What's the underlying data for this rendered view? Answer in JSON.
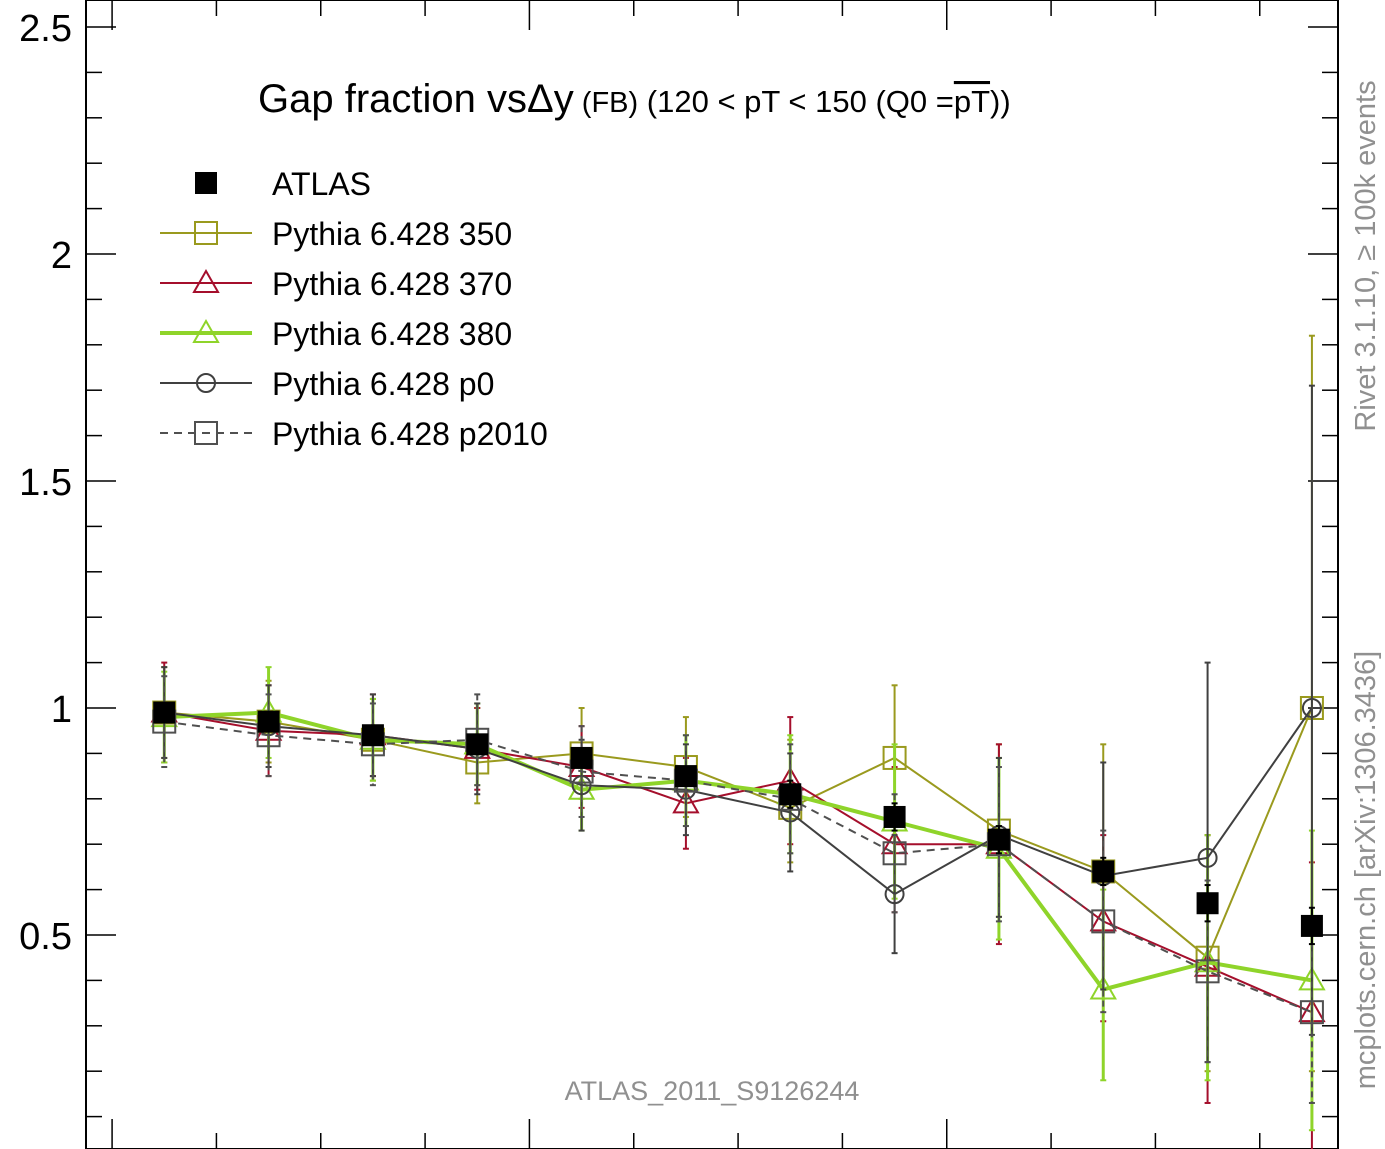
{
  "chart_data": {
    "type": "line",
    "title_main": "Gap fraction vs",
    "title_delta": "Δy",
    "title_fb": " (FB)",
    "title_pt_prefix": " (120 < pT < 150 (Q0 =",
    "title_pt_bar": "pT",
    "title_pt_suffix": "))",
    "watermark": "ATLAS_2011_S9126244",
    "side_label_top": "Rivet 3.1.10, ≥ 100k events",
    "side_label_bottom": "mcplots.cern.ch [arXiv:1306.3436]",
    "ylim": [
      0.1,
      2.5
    ],
    "xlim": [
      0,
      12
    ],
    "y_ticks": [
      {
        "value": 0.5,
        "label": "0.5"
      },
      {
        "value": 1,
        "label": "1"
      },
      {
        "value": 1.5,
        "label": "1.5"
      },
      {
        "value": 2,
        "label": "2"
      },
      {
        "value": 2.5,
        "label": "2.5"
      }
    ],
    "x": [
      0.75,
      1.75,
      2.75,
      3.75,
      4.75,
      5.75,
      6.75,
      7.75,
      8.75,
      9.75,
      10.75,
      11.75
    ],
    "series": [
      {
        "name": "ATLAS",
        "color": "#000000",
        "marker": "filled-square",
        "line": "none",
        "values": [
          0.99,
          0.97,
          0.94,
          0.92,
          0.89,
          0.85,
          0.81,
          0.76,
          0.71,
          0.64,
          0.57,
          0.52
        ],
        "err_hi": [
          0.02,
          0.02,
          0.02,
          0.02,
          0.02,
          0.02,
          0.03,
          0.03,
          0.03,
          0.03,
          0.04,
          0.04
        ],
        "err_lo": [
          0.02,
          0.02,
          0.02,
          0.02,
          0.02,
          0.02,
          0.03,
          0.03,
          0.03,
          0.03,
          0.04,
          0.04
        ]
      },
      {
        "name": "Pythia 6.428 350",
        "color": "#9a9a1e",
        "marker": "open-square",
        "line": "solid",
        "values": [
          0.99,
          0.97,
          0.93,
          0.88,
          0.9,
          0.87,
          0.78,
          0.89,
          0.73,
          0.64,
          0.45,
          1.0
        ],
        "err_hi": [
          0.1,
          0.09,
          0.09,
          0.12,
          0.1,
          0.11,
          0.15,
          0.16,
          0.19,
          0.28,
          0.27,
          0.82
        ],
        "err_lo": [
          0.1,
          0.09,
          0.09,
          0.09,
          0.1,
          0.11,
          0.12,
          0.16,
          0.19,
          0.28,
          0.25,
          0.8
        ]
      },
      {
        "name": "Pythia 6.428 370",
        "color": "#a50f2c",
        "marker": "open-triangle",
        "line": "solid",
        "values": [
          0.99,
          0.95,
          0.94,
          0.91,
          0.87,
          0.79,
          0.84,
          0.7,
          0.7,
          0.53,
          0.43,
          0.33
        ],
        "err_hi": [
          0.11,
          0.1,
          0.09,
          0.09,
          0.09,
          0.1,
          0.14,
          0.17,
          0.22,
          0.19,
          0.29,
          0.33
        ],
        "err_lo": [
          0.11,
          0.1,
          0.09,
          0.09,
          0.09,
          0.1,
          0.14,
          0.15,
          0.22,
          0.22,
          0.3,
          0.33
        ]
      },
      {
        "name": "Pythia 6.428 380",
        "color": "#8fd42a",
        "marker": "open-triangle",
        "line": "thick",
        "values": [
          0.98,
          0.99,
          0.93,
          0.92,
          0.82,
          0.84,
          0.81,
          0.75,
          0.69,
          0.38,
          0.44,
          0.4
        ],
        "err_hi": [
          0.1,
          0.1,
          0.09,
          0.09,
          0.09,
          0.1,
          0.13,
          0.17,
          0.2,
          0.22,
          0.28,
          0.33
        ],
        "err_lo": [
          0.1,
          0.1,
          0.09,
          0.09,
          0.09,
          0.1,
          0.13,
          0.17,
          0.2,
          0.2,
          0.26,
          0.33
        ]
      },
      {
        "name": "Pythia 6.428 p0",
        "color": "#404040",
        "marker": "open-circle",
        "line": "solid",
        "values": [
          0.99,
          0.96,
          0.94,
          0.91,
          0.83,
          0.82,
          0.77,
          0.59,
          0.72,
          0.63,
          0.67,
          1.0
        ],
        "err_hi": [
          0.1,
          0.09,
          0.09,
          0.1,
          0.1,
          0.1,
          0.13,
          0.13,
          0.17,
          0.25,
          0.43,
          0.71
        ],
        "err_lo": [
          0.1,
          0.09,
          0.09,
          0.1,
          0.1,
          0.1,
          0.13,
          0.13,
          0.18,
          0.25,
          0.45,
          0.72
        ]
      },
      {
        "name": "Pythia 6.428 p2010",
        "color": "#505050",
        "marker": "open-square",
        "line": "dashed",
        "values": [
          0.97,
          0.94,
          0.92,
          0.93,
          0.86,
          0.84,
          0.8,
          0.68,
          0.7,
          0.53,
          0.42,
          0.33
        ],
        "err_hi": [
          0.1,
          0.09,
          0.09,
          0.1,
          0.1,
          0.1,
          0.12,
          0.13,
          0.17,
          0.2,
          0.2,
          0.2
        ],
        "err_lo": [
          0.1,
          0.09,
          0.09,
          0.1,
          0.1,
          0.1,
          0.12,
          0.13,
          0.17,
          0.2,
          0.2,
          0.2
        ]
      }
    ]
  }
}
